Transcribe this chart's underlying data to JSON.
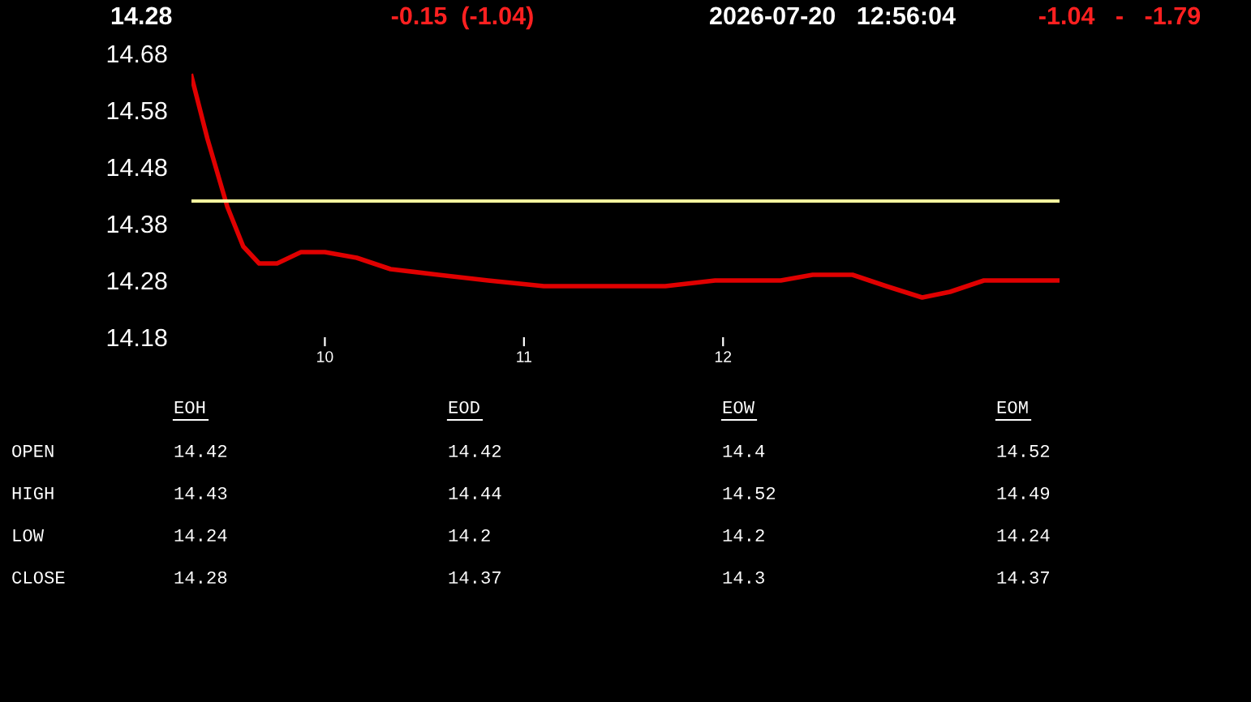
{
  "chart_data": [
    {
      "type": "line",
      "annotations": [
        "14.28",
        "-0.15  (-1.04)",
        "2026-07-20   12:56:04",
        "-1.04   -   -1.79"
      ],
      "series": [
        {
          "color": "#e00000",
          "x": [
            9.33,
            9.41,
            9.51,
            9.59,
            9.67,
            9.76,
            9.88,
            10.0,
            10.16,
            10.33,
            10.57,
            10.82,
            11.1,
            11.47,
            11.71,
            11.96,
            12.29,
            12.45,
            12.65,
            12.82,
            13.0,
            13.14,
            13.31,
            13.51,
            13.69
          ],
          "values": [
            14.64,
            14.53,
            14.41,
            14.34,
            14.31,
            14.31,
            14.33,
            14.33,
            14.32,
            14.3,
            14.29,
            14.28,
            14.27,
            14.27,
            14.27,
            14.28,
            14.28,
            14.29,
            14.29,
            14.27,
            14.25,
            14.26,
            14.28,
            14.28,
            14.28
          ]
        }
      ],
      "ref_lines": [
        {
          "axis": "y",
          "value": 14.42,
          "color": "#ffffa0"
        }
      ],
      "xlim": [
        9.33,
        13.69
      ],
      "ylim": [
        14.18,
        14.68
      ],
      "xticks": [
        10,
        11,
        12
      ],
      "yticks": [
        14.18,
        14.28,
        14.38,
        14.48,
        14.58,
        14.68
      ],
      "grid": false,
      "legend": false,
      "marker": "none",
      "line_style": "solid"
    },
    {
      "type": "other",
      "annotations": [
        "EOH",
        "EOD",
        "EOW",
        "EOM",
        "OPEN",
        "14.42",
        "14.42",
        "14.4",
        "14.52",
        "HIGH",
        "14.43",
        "14.44",
        "14.52",
        "14.49",
        "LOW",
        "14.24",
        "14.2",
        "14.2",
        "14.24",
        "CLOSE",
        "14.28",
        "14.37",
        "14.3",
        "14.37"
      ]
    }
  ]
}
